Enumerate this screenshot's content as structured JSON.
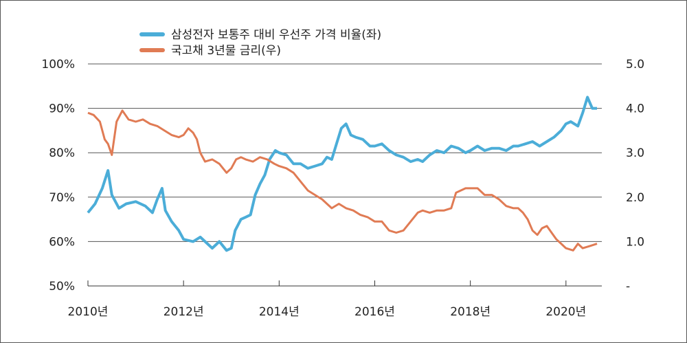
{
  "chart_data": {
    "type": "line",
    "legend_position": "top-center",
    "grid": true,
    "x_tick_labels": [
      "2010년",
      "2012년",
      "2014년",
      "2016년",
      "2018년",
      "2020년"
    ],
    "x_ticks": [
      2010,
      2012,
      2014,
      2016,
      2018,
      2020
    ],
    "xlim": [
      2010,
      2020.75
    ],
    "y_left": {
      "lim": [
        50,
        100
      ],
      "ticks": [
        50,
        60,
        70,
        80,
        90,
        100
      ],
      "tick_labels": [
        "50%",
        "60%",
        "70%",
        "80%",
        "90%",
        "100%"
      ]
    },
    "y_right": {
      "lim": [
        0,
        5
      ],
      "ticks": [
        0,
        1,
        2,
        3,
        4,
        5
      ],
      "tick_labels": [
        "-",
        "1.0",
        "2.0",
        "3.0",
        "4.0",
        "5.0"
      ]
    },
    "series": [
      {
        "name": "삼성전자 보통주 대비 우선주 가격 비율(좌)",
        "axis": "left",
        "color": "#4badd8",
        "points": [
          [
            2010.0,
            66.5
          ],
          [
            2010.15,
            68.5
          ],
          [
            2010.3,
            72.0
          ],
          [
            2010.42,
            76.0
          ],
          [
            2010.5,
            70.5
          ],
          [
            2010.65,
            67.5
          ],
          [
            2010.8,
            68.5
          ],
          [
            2011.0,
            69.0
          ],
          [
            2011.2,
            68.0
          ],
          [
            2011.35,
            66.5
          ],
          [
            2011.45,
            69.5
          ],
          [
            2011.55,
            72.0
          ],
          [
            2011.62,
            67.0
          ],
          [
            2011.75,
            64.5
          ],
          [
            2011.9,
            62.5
          ],
          [
            2012.0,
            60.5
          ],
          [
            2012.2,
            60.0
          ],
          [
            2012.35,
            61.0
          ],
          [
            2012.5,
            59.5
          ],
          [
            2012.6,
            58.5
          ],
          [
            2012.75,
            60.0
          ],
          [
            2012.9,
            58.0
          ],
          [
            2013.0,
            58.5
          ],
          [
            2013.08,
            62.5
          ],
          [
            2013.2,
            65.0
          ],
          [
            2013.3,
            65.5
          ],
          [
            2013.4,
            66.0
          ],
          [
            2013.5,
            70.5
          ],
          [
            2013.6,
            73.0
          ],
          [
            2013.7,
            75.0
          ],
          [
            2013.8,
            78.5
          ],
          [
            2013.92,
            80.5
          ],
          [
            2014.0,
            80.0
          ],
          [
            2014.15,
            79.5
          ],
          [
            2014.3,
            77.5
          ],
          [
            2014.45,
            77.5
          ],
          [
            2014.6,
            76.5
          ],
          [
            2014.75,
            77.0
          ],
          [
            2014.9,
            77.5
          ],
          [
            2015.0,
            79.0
          ],
          [
            2015.1,
            78.5
          ],
          [
            2015.2,
            82.0
          ],
          [
            2015.3,
            85.5
          ],
          [
            2015.4,
            86.5
          ],
          [
            2015.5,
            84.0
          ],
          [
            2015.6,
            83.5
          ],
          [
            2015.75,
            83.0
          ],
          [
            2015.9,
            81.5
          ],
          [
            2016.0,
            81.5
          ],
          [
            2016.15,
            82.0
          ],
          [
            2016.3,
            80.5
          ],
          [
            2016.45,
            79.5
          ],
          [
            2016.6,
            79.0
          ],
          [
            2016.75,
            78.0
          ],
          [
            2016.9,
            78.5
          ],
          [
            2017.0,
            78.0
          ],
          [
            2017.15,
            79.5
          ],
          [
            2017.3,
            80.5
          ],
          [
            2017.45,
            80.0
          ],
          [
            2017.6,
            81.5
          ],
          [
            2017.75,
            81.0
          ],
          [
            2017.9,
            80.0
          ],
          [
            2018.0,
            80.5
          ],
          [
            2018.15,
            81.5
          ],
          [
            2018.3,
            80.5
          ],
          [
            2018.45,
            81.0
          ],
          [
            2018.6,
            81.0
          ],
          [
            2018.75,
            80.5
          ],
          [
            2018.9,
            81.5
          ],
          [
            2019.0,
            81.5
          ],
          [
            2019.15,
            82.0
          ],
          [
            2019.3,
            82.5
          ],
          [
            2019.45,
            81.5
          ],
          [
            2019.6,
            82.5
          ],
          [
            2019.75,
            83.5
          ],
          [
            2019.9,
            85.0
          ],
          [
            2020.0,
            86.5
          ],
          [
            2020.1,
            87.0
          ],
          [
            2020.25,
            86.0
          ],
          [
            2020.35,
            89.0
          ],
          [
            2020.45,
            92.5
          ],
          [
            2020.55,
            90.0
          ],
          [
            2020.65,
            90.0
          ]
        ]
      },
      {
        "name": "국고채 3년물 금리(우)",
        "axis": "right",
        "color": "#e07b54",
        "points": [
          [
            2010.0,
            3.9
          ],
          [
            2010.12,
            3.85
          ],
          [
            2010.25,
            3.7
          ],
          [
            2010.35,
            3.3
          ],
          [
            2010.42,
            3.2
          ],
          [
            2010.5,
            2.95
          ],
          [
            2010.6,
            3.7
          ],
          [
            2010.72,
            3.95
          ],
          [
            2010.85,
            3.75
          ],
          [
            2011.0,
            3.7
          ],
          [
            2011.15,
            3.75
          ],
          [
            2011.3,
            3.65
          ],
          [
            2011.45,
            3.6
          ],
          [
            2011.6,
            3.5
          ],
          [
            2011.75,
            3.4
          ],
          [
            2011.9,
            3.35
          ],
          [
            2012.0,
            3.4
          ],
          [
            2012.1,
            3.55
          ],
          [
            2012.2,
            3.45
          ],
          [
            2012.28,
            3.3
          ],
          [
            2012.35,
            3.0
          ],
          [
            2012.45,
            2.8
          ],
          [
            2012.6,
            2.85
          ],
          [
            2012.75,
            2.75
          ],
          [
            2012.9,
            2.55
          ],
          [
            2013.0,
            2.65
          ],
          [
            2013.1,
            2.85
          ],
          [
            2013.2,
            2.9
          ],
          [
            2013.3,
            2.85
          ],
          [
            2013.45,
            2.8
          ],
          [
            2013.6,
            2.9
          ],
          [
            2013.75,
            2.85
          ],
          [
            2013.9,
            2.75
          ],
          [
            2014.0,
            2.7
          ],
          [
            2014.15,
            2.65
          ],
          [
            2014.3,
            2.55
          ],
          [
            2014.45,
            2.35
          ],
          [
            2014.6,
            2.15
          ],
          [
            2014.75,
            2.05
          ],
          [
            2014.9,
            1.95
          ],
          [
            2015.0,
            1.85
          ],
          [
            2015.1,
            1.75
          ],
          [
            2015.25,
            1.85
          ],
          [
            2015.4,
            1.75
          ],
          [
            2015.55,
            1.7
          ],
          [
            2015.7,
            1.6
          ],
          [
            2015.85,
            1.55
          ],
          [
            2016.0,
            1.45
          ],
          [
            2016.15,
            1.45
          ],
          [
            2016.3,
            1.25
          ],
          [
            2016.45,
            1.2
          ],
          [
            2016.6,
            1.25
          ],
          [
            2016.75,
            1.45
          ],
          [
            2016.9,
            1.65
          ],
          [
            2017.0,
            1.7
          ],
          [
            2017.15,
            1.65
          ],
          [
            2017.3,
            1.7
          ],
          [
            2017.45,
            1.7
          ],
          [
            2017.6,
            1.75
          ],
          [
            2017.7,
            2.1
          ],
          [
            2017.8,
            2.15
          ],
          [
            2017.9,
            2.2
          ],
          [
            2018.0,
            2.2
          ],
          [
            2018.15,
            2.2
          ],
          [
            2018.3,
            2.05
          ],
          [
            2018.45,
            2.05
          ],
          [
            2018.6,
            1.95
          ],
          [
            2018.75,
            1.8
          ],
          [
            2018.9,
            1.75
          ],
          [
            2019.0,
            1.75
          ],
          [
            2019.1,
            1.65
          ],
          [
            2019.2,
            1.5
          ],
          [
            2019.3,
            1.25
          ],
          [
            2019.4,
            1.15
          ],
          [
            2019.5,
            1.3
          ],
          [
            2019.6,
            1.35
          ],
          [
            2019.7,
            1.2
          ],
          [
            2019.8,
            1.05
          ],
          [
            2019.9,
            0.95
          ],
          [
            2020.0,
            0.85
          ],
          [
            2020.15,
            0.8
          ],
          [
            2020.25,
            0.95
          ],
          [
            2020.35,
            0.85
          ],
          [
            2020.5,
            0.9
          ],
          [
            2020.65,
            0.95
          ]
        ]
      }
    ]
  }
}
